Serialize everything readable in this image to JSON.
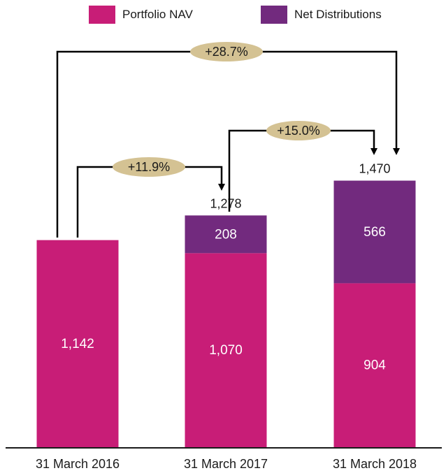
{
  "legend": {
    "nav_label": "Portfolio NAV",
    "nav_color": "#c81d77",
    "dist_label": "Net Distributions",
    "dist_color": "#722a7e"
  },
  "chart_data": {
    "type": "bar",
    "stacked": true,
    "categories": [
      "31 March 2016",
      "31 March 2017",
      "31 March 2018"
    ],
    "series": [
      {
        "name": "Portfolio NAV",
        "values": [
          1142,
          1070,
          904
        ],
        "labels": [
          "1,142",
          "1,070",
          "904"
        ],
        "color": "#c81d77"
      },
      {
        "name": "Net Distributions",
        "values": [
          0,
          208,
          566
        ],
        "labels": [
          "",
          "208",
          "566"
        ],
        "color": "#722a7e"
      }
    ],
    "totals": [
      "",
      "1,278",
      "1,470"
    ],
    "growth_annotations": [
      {
        "from": "31 March 2016",
        "to": "31 March 2017",
        "label": "+11.9%"
      },
      {
        "from": "31 March 2017",
        "to": "31 March 2018",
        "label": "+15.0%"
      },
      {
        "from": "31 March 2016",
        "to": "31 March 2018",
        "label": "+28.7%"
      }
    ],
    "annotation_color": "#d4c293",
    "ylim": [
      0,
      1800
    ],
    "legend_position": "top",
    "grid": false
  }
}
